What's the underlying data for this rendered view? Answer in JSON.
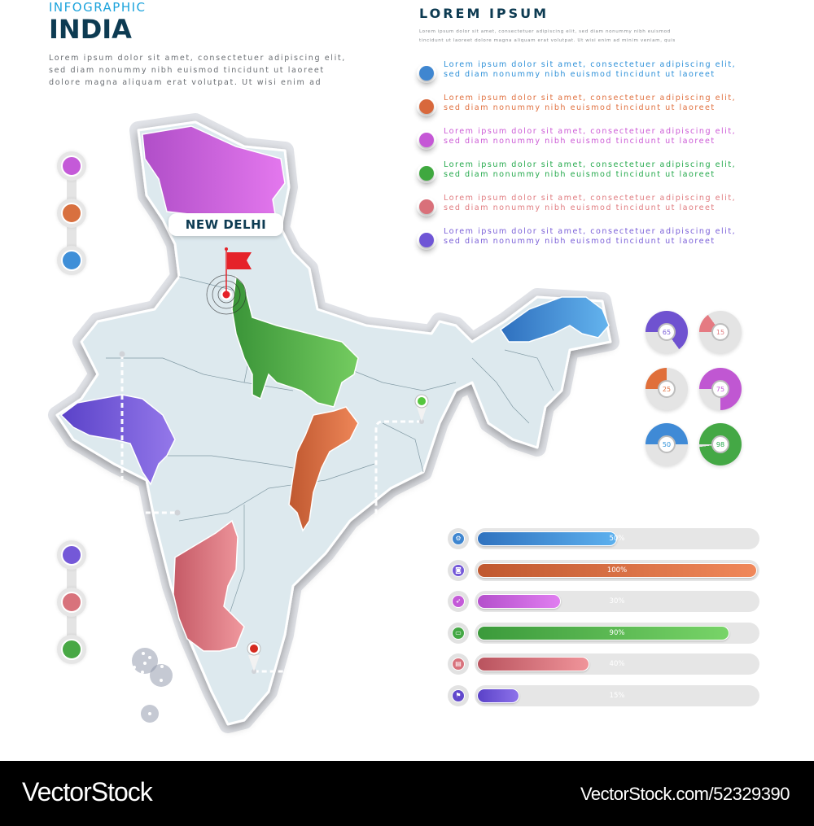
{
  "header": {
    "kicker": "INFOGRAPHIC",
    "title": "INDIA",
    "intro_lines": [
      "Lorem ipsum dolor sit amet, consectetuer adipiscing elit,",
      "sed diam nonummy nibh euismod tincidunt ut laoreet",
      "dolore magna aliquam erat volutpat. Ut wisi enim ad"
    ]
  },
  "summary": {
    "title": "LOREM IPSUM",
    "lines": [
      "Lorem ipsum dolor sit amet, consectetuer adipiscing elit, sed diam nonummy nibh euismod",
      "tincidunt ut laoreet dolore magna aliquam erat volutpat. Ut wisi enim ad minim veniam, quis"
    ]
  },
  "legend": [
    {
      "color": "#3f86d0",
      "text_color": "#2b8fd8",
      "line1": "Lorem ipsum dolor sit amet, consectetuer adipiscing elit,",
      "line2": "sed diam nonummy nibh euismod tincidunt ut laoreet"
    },
    {
      "color": "#d8683c",
      "text_color": "#e0703f",
      "line1": "Lorem ipsum dolor sit amet, consectetuer adipiscing elit,",
      "line2": "sed diam nonummy nibh euismod tincidunt ut laoreet"
    },
    {
      "color": "#c557d6",
      "text_color": "#cc5ad6",
      "line1": "Lorem ipsum dolor sit amet, consectetuer adipiscing elit,",
      "line2": "sed diam nonummy nibh euismod tincidunt ut laoreet"
    },
    {
      "color": "#3fa83f",
      "text_color": "#22a84a",
      "line1": "Lorem ipsum dolor sit amet, consectetuer adipiscing elit,",
      "line2": "sed diam nonummy nibh euismod tincidunt ut laoreet"
    },
    {
      "color": "#d9707a",
      "text_color": "#e07c80",
      "line1": "Lorem ipsum dolor sit amet, consectetuer adipiscing elit,",
      "line2": "sed diam nonummy nibh euismod tincidunt ut laoreet"
    },
    {
      "color": "#6f55d6",
      "text_color": "#7a5fd8",
      "line1": "Lorem ipsum dolor sit amet, consectetuer adipiscing elit,",
      "line2": "sed diam nonummy nibh euismod tincidunt ut laoreet"
    }
  ],
  "map": {
    "capital_label": "NEW DELHI",
    "capital_marker_color": "#e52229",
    "land_color": "#dde9ee",
    "regions": [
      {
        "name": "north",
        "color": "#c45ad8"
      },
      {
        "name": "north-central",
        "color": "#4caa45"
      },
      {
        "name": "north-east",
        "color": "#3f86d0"
      },
      {
        "name": "west",
        "color": "#7458d8"
      },
      {
        "name": "central-east",
        "color": "#d26a3a"
      },
      {
        "name": "south-west",
        "color": "#d8727c"
      }
    ]
  },
  "side_stacks": {
    "top": [
      "#c45ad8",
      "#d8703f",
      "#3f8fd8"
    ],
    "bottom": [
      "#7458d8",
      "#d8737c",
      "#48a845"
    ]
  },
  "donuts": [
    {
      "value": "65",
      "color": "#6f52d0",
      "text_color": "#7a5fd8"
    },
    {
      "value": "15",
      "color": "#e57a82",
      "text_color": "#e07c80"
    },
    {
      "value": "25",
      "color": "#e06f3a",
      "text_color": "#e0703f"
    },
    {
      "value": "75",
      "color": "#c057d2",
      "text_color": "#c45ad8"
    },
    {
      "value": "50",
      "color": "#3f8ad6",
      "text_color": "#2b8fd8"
    },
    {
      "value": "98",
      "color": "#44a845",
      "text_color": "#22a84a"
    }
  ],
  "bars": [
    {
      "label": "50%",
      "value": 50,
      "icon": "gear-icon",
      "glyph": "⚙",
      "color_from": "#2f72bf",
      "color_to": "#5cb0ee",
      "icon_color": "#3f86d0"
    },
    {
      "label": "100%",
      "value": 100,
      "icon": "camera-icon",
      "glyph": "◙",
      "color_from": "#c0582f",
      "color_to": "#f0885a",
      "icon_color": "#7458d8"
    },
    {
      "label": "30%",
      "value": 30,
      "icon": "compass-icon",
      "glyph": "➶",
      "color_from": "#b44fcc",
      "color_to": "#e07ef0",
      "icon_color": "#c45ad8"
    },
    {
      "label": "90%",
      "value": 90,
      "icon": "ticket-icon",
      "glyph": "▭",
      "color_from": "#3b9a3b",
      "color_to": "#78d468",
      "icon_color": "#44a845"
    },
    {
      "label": "40%",
      "value": 40,
      "icon": "chat-icon",
      "glyph": "▤",
      "color_from": "#b9535e",
      "color_to": "#f0949a",
      "icon_color": "#d8727c"
    },
    {
      "label": "15%",
      "value": 15,
      "icon": "flag-icon",
      "glyph": "⚑",
      "color_from": "#5a42c8",
      "color_to": "#8d72ea",
      "icon_color": "#6148cc"
    }
  ],
  "footer": {
    "brand": "VectorStock",
    "url": "VectorStock.com/52329390"
  }
}
